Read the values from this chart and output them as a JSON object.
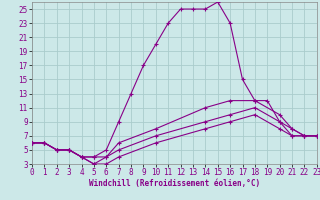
{
  "bg_color": "#cce8e8",
  "line_color": "#880088",
  "grid_color": "#aacccc",
  "xlabel": "Windchill (Refroidissement éolien,°C)",
  "xlim": [
    0,
    23
  ],
  "ylim": [
    3,
    26
  ],
  "xticks": [
    0,
    1,
    2,
    3,
    4,
    5,
    6,
    7,
    8,
    9,
    10,
    11,
    12,
    13,
    14,
    15,
    16,
    17,
    18,
    19,
    20,
    21,
    22,
    23
  ],
  "yticks": [
    3,
    5,
    7,
    9,
    11,
    13,
    15,
    17,
    19,
    21,
    23,
    25
  ],
  "c1x": [
    0,
    1,
    2,
    3,
    4,
    5,
    6,
    7,
    8,
    9,
    10,
    11,
    12,
    13,
    14,
    15,
    16,
    17,
    18,
    19,
    20,
    21,
    22,
    23
  ],
  "c1y": [
    6,
    6,
    5,
    5,
    4,
    4,
    5,
    9,
    13,
    17,
    20,
    23,
    25,
    25,
    25,
    26,
    23,
    15,
    12,
    12,
    9,
    8,
    7,
    7
  ],
  "c2x": [
    0,
    1,
    2,
    3,
    4,
    5,
    6,
    7,
    10,
    14,
    16,
    18,
    20,
    21,
    22,
    23
  ],
  "c2y": [
    6,
    6,
    5,
    5,
    4,
    4,
    4,
    6,
    8,
    11,
    12,
    12,
    10,
    8,
    7,
    7
  ],
  "c3x": [
    0,
    1,
    2,
    3,
    4,
    5,
    6,
    7,
    10,
    14,
    16,
    18,
    20,
    21,
    22,
    23
  ],
  "c3y": [
    6,
    6,
    5,
    5,
    4,
    3,
    4,
    5,
    7,
    9,
    10,
    11,
    9,
    7,
    7,
    7
  ],
  "c4x": [
    0,
    1,
    2,
    3,
    4,
    5,
    6,
    7,
    10,
    14,
    16,
    18,
    20,
    21,
    22,
    23
  ],
  "c4y": [
    6,
    6,
    5,
    5,
    4,
    3,
    3,
    4,
    6,
    8,
    9,
    10,
    8,
    7,
    7,
    7
  ]
}
